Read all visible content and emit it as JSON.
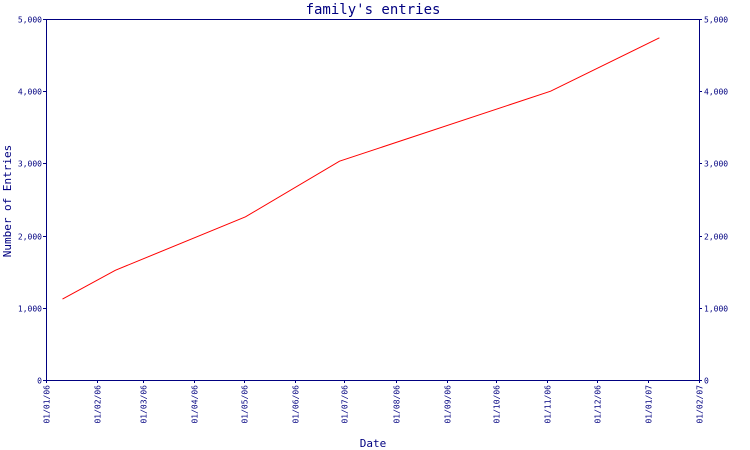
{
  "chart_data": {
    "type": "line",
    "title": "family's entries",
    "xlabel": "Date",
    "ylabel": "Number of Entries",
    "x_ticks": [
      "01/01/06",
      "01/02/06",
      "01/03/06",
      "01/04/06",
      "01/05/06",
      "01/06/06",
      "01/07/06",
      "01/08/06",
      "01/09/06",
      "01/10/06",
      "01/11/06",
      "01/12/06",
      "01/01/07",
      "01/02/07"
    ],
    "y_ticks": [
      "0",
      "1,000",
      "2,000",
      "3,000",
      "4,000",
      "5,000"
    ],
    "y_tick_values": [
      0,
      1000,
      2000,
      3000,
      4000,
      5000
    ],
    "ylim": [
      0,
      5000
    ],
    "xlim": [
      "2006-01-01",
      "2007-02-01"
    ],
    "series": [
      {
        "color": "#ff0000",
        "x": [
          "2006-01-11",
          "2006-02-12",
          "2006-05-02",
          "2006-06-28",
          "2006-11-03",
          "2007-01-08"
        ],
        "y": [
          1120,
          1520,
          2260,
          3030,
          4000,
          4740
        ]
      }
    ],
    "grid": false,
    "axes_color": "#000080"
  }
}
